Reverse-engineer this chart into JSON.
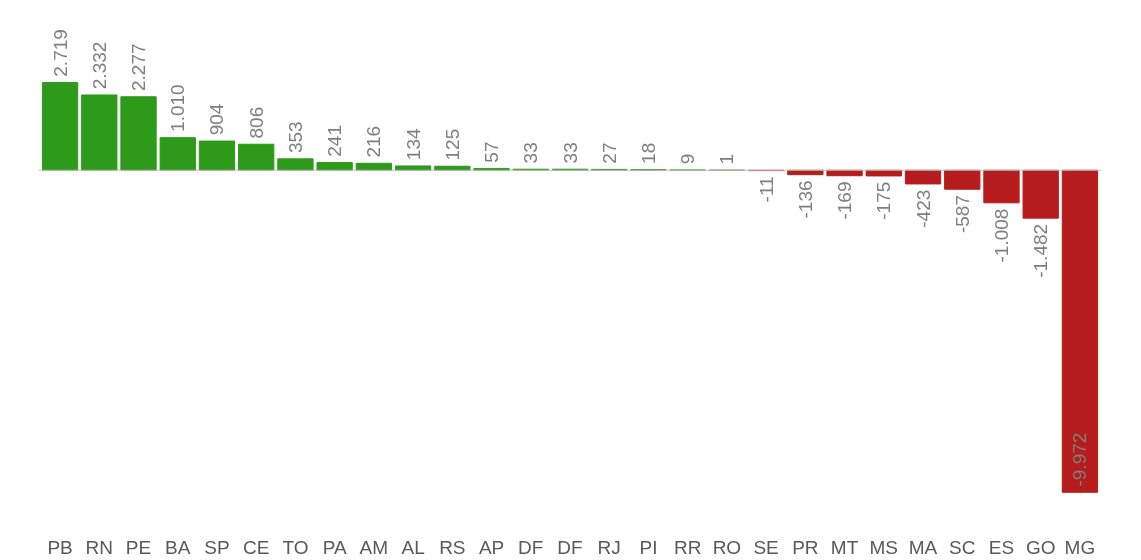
{
  "chart_data": {
    "type": "bar",
    "categories": [
      "PB",
      "RN",
      "PE",
      "BA",
      "SP",
      "CE",
      "TO",
      "PA",
      "AM",
      "AL",
      "RS",
      "AP",
      "DF",
      "DF",
      "RJ",
      "PI",
      "RR",
      "RO",
      "SE",
      "PR",
      "MT",
      "MS",
      "MA",
      "SC",
      "ES",
      "GO",
      "MG"
    ],
    "values": [
      2719,
      2332,
      2277,
      1010,
      904,
      806,
      353,
      241,
      216,
      134,
      125,
      57,
      33,
      33,
      27,
      18,
      9,
      1,
      -11,
      -136,
      -169,
      -175,
      -423,
      -587,
      -1008,
      -1482,
      -9972
    ],
    "value_labels": [
      "2.719",
      "2.332",
      "2.277",
      "1.010",
      "904",
      "806",
      "353",
      "241",
      "216",
      "134",
      "125",
      "57",
      "33",
      "33",
      "27",
      "18",
      "9",
      "1",
      "-11",
      "-136",
      "-169",
      "-175",
      "-423",
      "-587",
      "-1.008",
      "-1.482",
      "-9.972"
    ],
    "colors": [
      "#2e9a1a",
      "#2e9a1a",
      "#2e9a1a",
      "#2e9a1a",
      "#2e9a1a",
      "#2e9a1a",
      "#2e9a1a",
      "#2e9a1a",
      "#2e9a1a",
      "#2e9a1a",
      "#2e9a1a",
      "#2e9a1a",
      "#2e9a1a",
      "#2e9a1a",
      "#2e9a1a",
      "#2e9a1a",
      "#2e9a1a",
      "#2e9a1a",
      "#b71c1c",
      "#b71c1c",
      "#b71c1c",
      "#b71c1c",
      "#b71c1c",
      "#b71c1c",
      "#b71c1c",
      "#b71c1c",
      "#b71c1c"
    ],
    "grid": false
  }
}
